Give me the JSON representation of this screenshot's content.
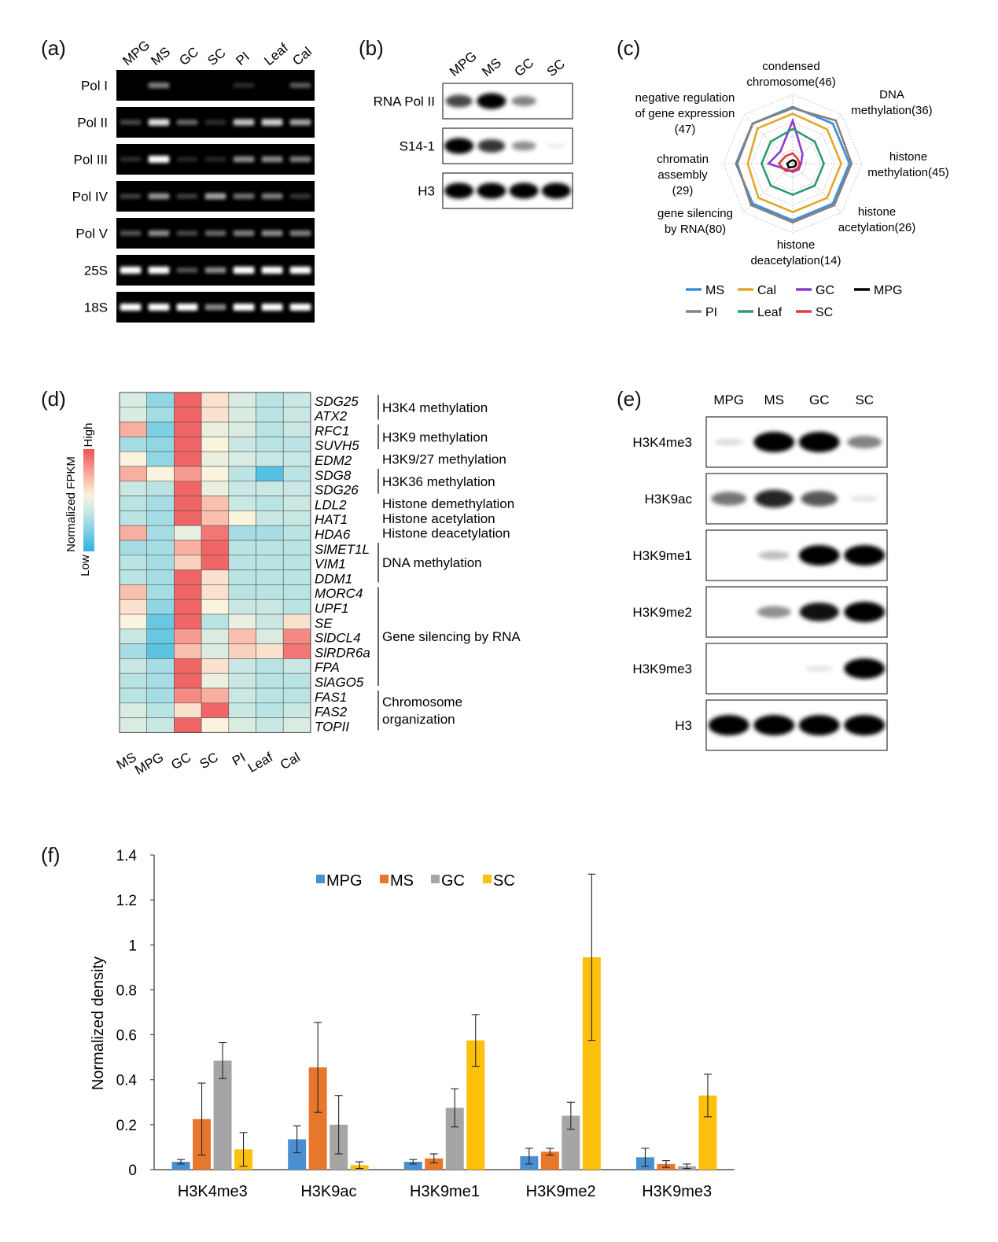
{
  "panel_labels": {
    "a": "(a)",
    "b": "(b)",
    "c": "(c)",
    "d": "(d)",
    "e": "(e)",
    "f": "(f)"
  },
  "panel_a": {
    "lanes": [
      "MPG",
      "MS",
      "GC",
      "SC",
      "PI",
      "Leaf",
      "Cal"
    ],
    "rows": [
      {
        "label": "Pol I",
        "intensity": [
          0.0,
          0.55,
          0.0,
          0.0,
          0.15,
          0.0,
          0.4
        ]
      },
      {
        "label": "Pol II",
        "intensity": [
          0.3,
          0.9,
          0.45,
          0.15,
          0.8,
          0.85,
          0.7
        ]
      },
      {
        "label": "Pol III",
        "intensity": [
          0.15,
          1.0,
          0.1,
          0.1,
          0.6,
          0.6,
          0.55
        ]
      },
      {
        "label": "Pol IV",
        "intensity": [
          0.25,
          0.65,
          0.25,
          0.7,
          0.5,
          0.55,
          0.2
        ]
      },
      {
        "label": "Pol V",
        "intensity": [
          0.35,
          0.6,
          0.3,
          0.45,
          0.55,
          0.6,
          0.55
        ]
      },
      {
        "label": "25S",
        "intensity": [
          1.0,
          1.0,
          0.35,
          0.6,
          1.0,
          1.0,
          1.0
        ]
      },
      {
        "label": "18S",
        "intensity": [
          1.0,
          1.0,
          1.0,
          0.6,
          1.0,
          1.0,
          1.0
        ]
      }
    ]
  },
  "panel_b": {
    "lanes": [
      "MPG",
      "MS",
      "GC",
      "SC"
    ],
    "rows": [
      {
        "label": "RNA Pol II",
        "intensity": [
          0.75,
          1.0,
          0.55,
          0.0
        ]
      },
      {
        "label": "S14-1",
        "intensity": [
          1.0,
          0.8,
          0.5,
          0.05
        ]
      },
      {
        "label": "H3",
        "intensity": [
          1.0,
          1.0,
          1.0,
          1.0
        ]
      }
    ]
  },
  "panel_c": {
    "axes": [
      {
        "label": [
          "condensed",
          "chromosome(46)"
        ]
      },
      {
        "label": [
          "DNA",
          "methylation(36)"
        ]
      },
      {
        "label": [
          "histone",
          "methylation(45)"
        ]
      },
      {
        "label": [
          "histone",
          "acetylation(26)"
        ]
      },
      {
        "label": [
          "histone",
          "deacetylation(14)"
        ]
      },
      {
        "label": [
          "gene silencing",
          "by RNA(80)"
        ]
      },
      {
        "label": [
          "chromatin",
          "assembly",
          "(29)"
        ]
      },
      {
        "label": [
          "negative regulation",
          "of gene expression",
          "(47)"
        ]
      }
    ],
    "series": [
      {
        "name": "MS",
        "color": "#3b8fd8",
        "values": [
          0.82,
          0.82,
          0.82,
          0.82,
          0.82,
          0.82,
          0.82,
          0.82
        ]
      },
      {
        "name": "Cal",
        "color": "#e5a52a",
        "values": [
          0.72,
          0.7,
          0.7,
          0.7,
          0.7,
          0.7,
          0.65,
          0.72
        ]
      },
      {
        "name": "GC",
        "color": "#8a3ccf",
        "values": [
          0.62,
          0.2,
          0.12,
          0.12,
          0.12,
          0.12,
          0.35,
          0.25
        ]
      },
      {
        "name": "MPG",
        "color": "#000000",
        "values": [
          0.05,
          0.05,
          0.05,
          0.05,
          0.05,
          0.08,
          0.08,
          0.05
        ]
      },
      {
        "name": "PI",
        "color": "#8c8179",
        "values": [
          0.8,
          0.88,
          0.85,
          0.85,
          0.85,
          0.85,
          0.8,
          0.82
        ]
      },
      {
        "name": "Leaf",
        "color": "#2e9a6e",
        "values": [
          0.5,
          0.45,
          0.45,
          0.45,
          0.45,
          0.45,
          0.45,
          0.45
        ]
      },
      {
        "name": "SC",
        "color": "#e23a3a",
        "values": [
          0.15,
          0.1,
          0.1,
          0.1,
          0.1,
          0.15,
          0.2,
          0.15
        ]
      }
    ]
  },
  "panel_d": {
    "columns": [
      "MS",
      "MPG",
      "GC",
      "SC",
      "PI",
      "Leaf",
      "Cal"
    ],
    "genes": [
      "SDG25",
      "ATX2",
      "RFC1",
      "SUVH5",
      "EDM2",
      "SDG8",
      "SDG26",
      "LDL2",
      "HAT1",
      "HDA6",
      "SlMET1L",
      "VIM1",
      "DDM1",
      "MORC4",
      "UPF1",
      "SE",
      "SlDCL4",
      "SlRDR6a",
      "FPA",
      "SlAGO5",
      "FAS1",
      "FAS2",
      "TOPII"
    ],
    "values": [
      [
        0.45,
        0.25,
        0.95,
        0.6,
        0.45,
        0.35,
        0.4
      ],
      [
        0.45,
        0.3,
        0.95,
        0.6,
        0.45,
        0.35,
        0.4
      ],
      [
        0.75,
        0.2,
        0.95,
        0.5,
        0.45,
        0.35,
        0.4
      ],
      [
        0.3,
        0.25,
        0.95,
        0.55,
        0.4,
        0.35,
        0.35
      ],
      [
        0.55,
        0.25,
        0.95,
        0.5,
        0.45,
        0.4,
        0.4
      ],
      [
        0.75,
        0.55,
        0.8,
        0.55,
        0.35,
        0.1,
        0.35
      ],
      [
        0.4,
        0.35,
        0.95,
        0.5,
        0.4,
        0.4,
        0.4
      ],
      [
        0.35,
        0.3,
        0.95,
        0.7,
        0.4,
        0.35,
        0.4
      ],
      [
        0.35,
        0.3,
        0.95,
        0.7,
        0.55,
        0.4,
        0.4
      ],
      [
        0.75,
        0.3,
        0.5,
        0.9,
        0.3,
        0.3,
        0.35
      ],
      [
        0.3,
        0.3,
        0.75,
        0.95,
        0.35,
        0.35,
        0.35
      ],
      [
        0.35,
        0.3,
        0.65,
        0.95,
        0.35,
        0.35,
        0.35
      ],
      [
        0.35,
        0.3,
        0.95,
        0.6,
        0.35,
        0.35,
        0.35
      ],
      [
        0.7,
        0.3,
        0.95,
        0.6,
        0.35,
        0.35,
        0.35
      ],
      [
        0.6,
        0.25,
        0.95,
        0.55,
        0.4,
        0.4,
        0.35
      ],
      [
        0.55,
        0.15,
        0.95,
        0.35,
        0.5,
        0.4,
        0.6
      ],
      [
        0.4,
        0.15,
        0.8,
        0.45,
        0.7,
        0.45,
        0.85
      ],
      [
        0.3,
        0.12,
        0.7,
        0.45,
        0.65,
        0.6,
        0.9
      ],
      [
        0.4,
        0.3,
        0.95,
        0.6,
        0.4,
        0.35,
        0.4
      ],
      [
        0.35,
        0.3,
        0.95,
        0.5,
        0.4,
        0.35,
        0.35
      ],
      [
        0.35,
        0.3,
        0.85,
        0.75,
        0.4,
        0.35,
        0.35
      ],
      [
        0.45,
        0.35,
        0.6,
        0.95,
        0.4,
        0.35,
        0.4
      ],
      [
        0.45,
        0.4,
        0.95,
        0.55,
        0.45,
        0.4,
        0.45
      ]
    ],
    "colorbar": {
      "title": "Normalized FPKM",
      "high": "High",
      "low": "Low"
    },
    "groups": [
      {
        "label": [
          "H3K4 methylation"
        ],
        "from": 0,
        "to": 1
      },
      {
        "label": [
          "H3K9 methylation"
        ],
        "from": 2,
        "to": 3
      },
      {
        "label": [
          "H3K9/27 methylation"
        ],
        "from": 4,
        "to": 4
      },
      {
        "label": [
          "H3K36 methylation"
        ],
        "from": 5,
        "to": 6
      },
      {
        "label": [
          "Histone demethylation"
        ],
        "from": 7,
        "to": 7
      },
      {
        "label": [
          "Histone acetylation"
        ],
        "from": 8,
        "to": 8
      },
      {
        "label": [
          "Histone deacetylation"
        ],
        "from": 9,
        "to": 9
      },
      {
        "label": [
          "DNA methylation"
        ],
        "from": 10,
        "to": 12
      },
      {
        "label": [
          "Gene silencing by RNA"
        ],
        "from": 13,
        "to": 19
      },
      {
        "label": [
          "Chromosome",
          "organization"
        ],
        "from": 20,
        "to": 22
      }
    ]
  },
  "panel_e": {
    "lanes": [
      "MPG",
      "MS",
      "GC",
      "SC"
    ],
    "rows": [
      {
        "label": "H3K4me3",
        "intensity": [
          0.15,
          1.0,
          1.0,
          0.55
        ]
      },
      {
        "label": "H3K9ac",
        "intensity": [
          0.6,
          0.85,
          0.7,
          0.1
        ]
      },
      {
        "label": "H3K9me1",
        "intensity": [
          0.0,
          0.3,
          1.0,
          1.0
        ]
      },
      {
        "label": "H3K9me2",
        "intensity": [
          0.0,
          0.5,
          0.9,
          1.0
        ]
      },
      {
        "label": "H3K9me3",
        "intensity": [
          0.0,
          0.0,
          0.1,
          1.0
        ]
      },
      {
        "label": "H3",
        "intensity": [
          1.0,
          1.0,
          1.0,
          1.0
        ]
      }
    ]
  },
  "chart_data": {
    "type": "bar",
    "categories": [
      "H3K4me3",
      "H3K9ac",
      "H3K9me1",
      "H3K9me2",
      "H3K9me3"
    ],
    "ylabel": "Normalized density",
    "ylim": [
      0,
      1.4
    ],
    "yticks": [
      "0",
      "0.2",
      "0.4",
      "0.6",
      "0.8",
      "1",
      "1.2",
      "1.4"
    ],
    "legend_position": "top-center",
    "series": [
      {
        "name": "MPG",
        "color": "#4a90d0",
        "values": [
          0.035,
          0.135,
          0.035,
          0.06,
          0.055
        ],
        "errors": [
          0.01,
          0.06,
          0.01,
          0.035,
          0.04
        ]
      },
      {
        "name": "MS",
        "color": "#e8772e",
        "values": [
          0.225,
          0.455,
          0.05,
          0.08,
          0.025
        ],
        "errors": [
          0.16,
          0.2,
          0.02,
          0.015,
          0.015
        ]
      },
      {
        "name": "GC",
        "color": "#a5a5a5",
        "values": [
          0.485,
          0.2,
          0.275,
          0.24,
          0.015
        ],
        "errors": [
          0.08,
          0.13,
          0.085,
          0.06,
          0.01
        ]
      },
      {
        "name": "SC",
        "color": "#fdc00c",
        "values": [
          0.09,
          0.02,
          0.575,
          0.945,
          0.33
        ],
        "errors": [
          0.075,
          0.015,
          0.115,
          0.37,
          0.095
        ]
      }
    ]
  }
}
